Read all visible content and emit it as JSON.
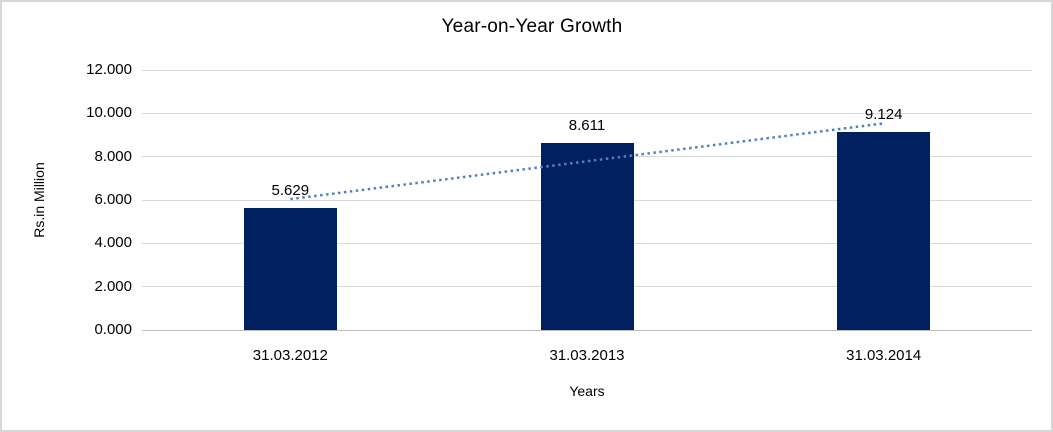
{
  "title": "Year-on-Year Growth",
  "colors": {
    "bar": "#002060",
    "trendline": "#4f81bd",
    "gridline": "#d9d9d9",
    "axis_line": "#bfbfbf",
    "frame_border": "#d6d6d6",
    "text": "#000000",
    "background": "#ffffff"
  },
  "chart_data": {
    "type": "bar",
    "title": "Year-on-Year Growth",
    "categories": [
      "31.03.2012",
      "31.03.2013",
      "31.03.2014"
    ],
    "values": [
      5.629,
      8.611,
      9.124
    ],
    "data_labels": [
      "5.629",
      "8.611",
      "9.124"
    ],
    "xlabel": "Years",
    "ylabel": "Rs.in Million",
    "ylim": [
      0,
      12
    ],
    "y_tick_step": 2,
    "y_tick_labels": [
      "0.000",
      "2.000",
      "4.000",
      "6.000",
      "8.000",
      "10.000",
      "12.000"
    ],
    "grid": true,
    "legend": "none",
    "trendline": {
      "type": "linear",
      "style": "dotted",
      "series": "values"
    }
  }
}
